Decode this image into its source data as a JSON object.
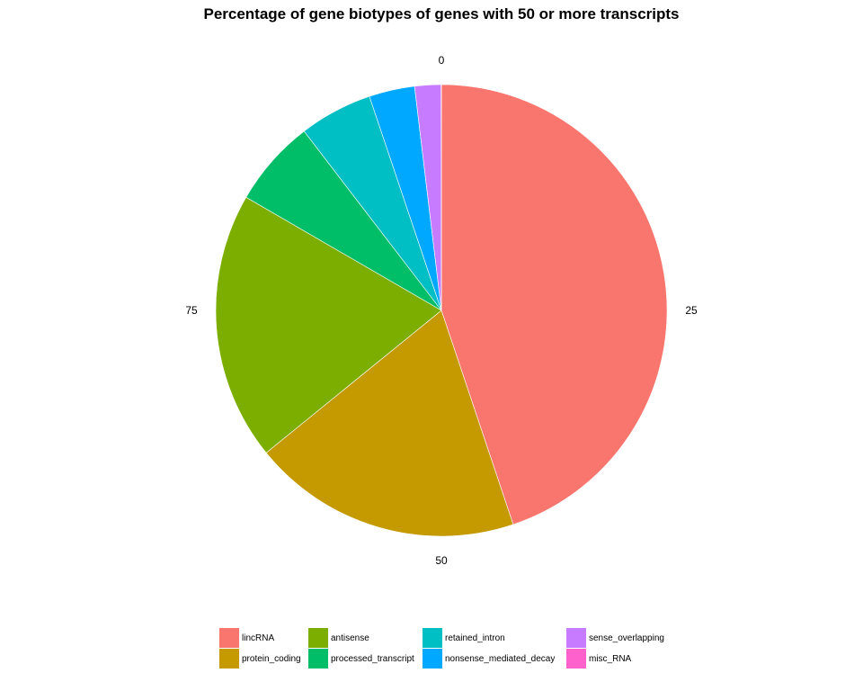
{
  "chart_data": {
    "type": "pie",
    "title": "Percentage of gene biotypes of genes with 50 or more transcripts",
    "theta_ticks": [
      "0",
      "25",
      "50",
      "75"
    ],
    "direction": "clockwise",
    "start": "top",
    "slices": [
      {
        "label": "lincRNA",
        "value": 45.3,
        "color": "#F8766D"
      },
      {
        "label": "protein_coding",
        "value": 19.5,
        "color": "#C49A00"
      },
      {
        "label": "antisense",
        "value": 19.4,
        "color": "#7CAE00"
      },
      {
        "label": "processed_transcript",
        "value": 6.3,
        "color": "#00BE67"
      },
      {
        "label": "retained_intron",
        "value": 5.3,
        "color": "#00BFC4"
      },
      {
        "label": "nonsense_mediated_decay",
        "value": 3.3,
        "color": "#00A9FF"
      },
      {
        "label": "sense_overlapping",
        "value": 1.9,
        "color": "#C77CFF"
      },
      {
        "label": "misc_RNA",
        "value": 0.02,
        "color": "#FF61CC"
      }
    ],
    "legend": {
      "position": "bottom",
      "rows": 2,
      "order": [
        "lincRNA",
        "protein_coding",
        "antisense",
        "processed_transcript",
        "retained_intron",
        "nonsense_mediated_decay",
        "sense_overlapping",
        "misc_RNA"
      ]
    }
  }
}
